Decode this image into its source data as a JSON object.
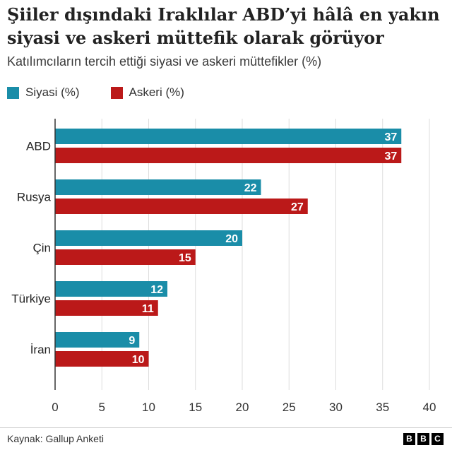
{
  "title": "Şiiler dışındaki Iraklılar ABD’yi hâlâ en yakın siyasi ve askeri müttefik olarak görüyor",
  "subtitle": "Katılımcıların tercih ettiği siyasi ve askeri müttefikler (%)",
  "source": "Kaynak: Gallup Anketi",
  "logo": [
    "B",
    "B",
    "C"
  ],
  "colors": {
    "siyasi": "#1a8da8",
    "askeri": "#bb1919",
    "grid": "#dddddd",
    "axis": "#333333"
  },
  "chart_data": {
    "type": "bar",
    "orientation": "horizontal",
    "categories": [
      "ABD",
      "Rusya",
      "Çin",
      "Türkiye",
      "İran"
    ],
    "series": [
      {
        "name": "Siyasi (%)",
        "values": [
          37,
          22,
          20,
          12,
          9
        ]
      },
      {
        "name": "Askeri (%)",
        "values": [
          37,
          27,
          15,
          11,
          10
        ]
      }
    ],
    "xlim": [
      0,
      40
    ],
    "xticks": [
      0,
      5,
      10,
      15,
      20,
      25,
      30,
      35,
      40
    ],
    "grid": true,
    "legend": "top-left"
  }
}
